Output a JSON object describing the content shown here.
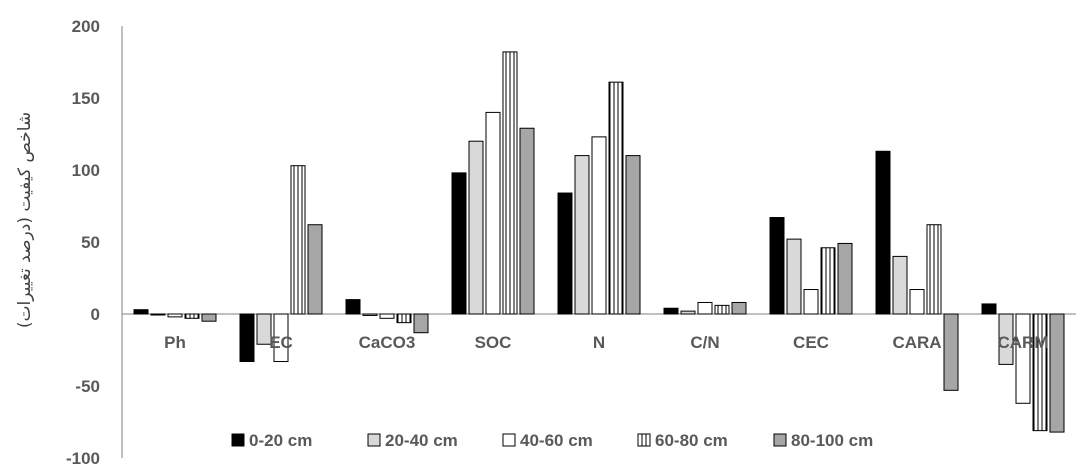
{
  "chart_data": {
    "type": "bar",
    "ylabel": "شاخص کیفیت (درصد تغییرات)",
    "ylim": [
      -100,
      200
    ],
    "yticks": [
      -100,
      -50,
      0,
      50,
      100,
      150,
      200
    ],
    "categories": [
      "Ph",
      "EC",
      "CaCO3",
      "SOC",
      "N",
      "C/N",
      "CEC",
      "CARA",
      "CARM"
    ],
    "series": [
      {
        "name": "0-20 cm",
        "fill": "#000000",
        "pattern": "solid",
        "values": [
          3,
          -33,
          10,
          98,
          84,
          4,
          67,
          113,
          7
        ]
      },
      {
        "name": "20-40 cm",
        "fill": "#d9d9d9",
        "pattern": "solid",
        "values": [
          0,
          -21,
          -1,
          120,
          110,
          2,
          52,
          40,
          -35
        ]
      },
      {
        "name": "40-60 cm",
        "fill": "#ffffff",
        "pattern": "solid",
        "values": [
          -2,
          -33,
          -3,
          140,
          123,
          8,
          17,
          17,
          -62
        ]
      },
      {
        "name": "60-80 cm",
        "fill": "#ffffff",
        "pattern": "vertical-lines",
        "values": [
          -3,
          103,
          -6,
          182,
          161,
          6,
          46,
          62,
          -81
        ]
      },
      {
        "name": "80-100 cm",
        "fill": "#a6a6a6",
        "pattern": "solid",
        "values": [
          -5,
          62,
          -13,
          129,
          110,
          8,
          49,
          -53,
          -82
        ]
      }
    ],
    "grid": false,
    "legend_position": "bottom"
  }
}
